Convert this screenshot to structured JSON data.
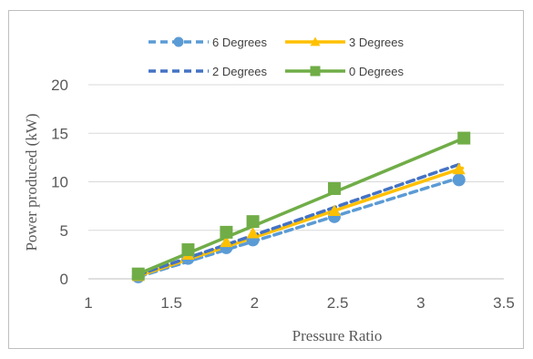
{
  "chart_data": {
    "type": "line",
    "title": "",
    "xlabel": "Pressure Ratio",
    "ylabel": "Power produced (kW)",
    "xlim": [
      1,
      3.5
    ],
    "ylim": [
      0,
      20
    ],
    "xticks": [
      "1",
      "1.5",
      "2",
      "2.5",
      "3",
      "3.5"
    ],
    "yticks": [
      "0",
      "5",
      "10",
      "15",
      "20"
    ],
    "grid": "horizontal",
    "legend_position": "top",
    "series": [
      {
        "name": "6 Degrees",
        "color": "#5b9bd5",
        "line_style": "dashed",
        "marker": "circle",
        "points": [
          [
            1.3,
            0.2
          ],
          [
            1.6,
            2.1
          ],
          [
            1.83,
            3.2
          ],
          [
            1.99,
            4.0
          ],
          [
            2.48,
            6.4
          ],
          [
            3.23,
            10.2
          ]
        ],
        "trend_end": [
          3.25,
          10.5
        ]
      },
      {
        "name": "3 Degrees",
        "color": "#ffc000",
        "line_style": "solid",
        "marker": "triangle",
        "points": [
          [
            1.3,
            0.3
          ],
          [
            1.6,
            2.5
          ],
          [
            1.83,
            3.8
          ],
          [
            1.99,
            4.7
          ],
          [
            2.48,
            7.0
          ],
          [
            3.23,
            11.3
          ]
        ],
        "trend_end": [
          3.25,
          11.4
        ]
      },
      {
        "name": "2 Degrees",
        "color": "#4472c4",
        "line_style": "dashed",
        "marker": "none",
        "points": [
          [
            1.3,
            0.4
          ],
          [
            1.6,
            2.8
          ],
          [
            1.83,
            4.4
          ],
          [
            1.99,
            5.4
          ],
          [
            2.48,
            8.1
          ],
          [
            3.23,
            11.7
          ]
        ],
        "trend_end": [
          3.25,
          11.9
        ]
      },
      {
        "name": "0 Degrees",
        "color": "#70ad47",
        "line_style": "solid",
        "marker": "square",
        "points": [
          [
            1.3,
            0.5
          ],
          [
            1.6,
            3.0
          ],
          [
            1.83,
            4.8
          ],
          [
            1.99,
            5.9
          ],
          [
            2.48,
            9.3
          ],
          [
            3.26,
            14.5
          ]
        ],
        "trend_end": [
          3.26,
          14.5
        ]
      }
    ]
  }
}
